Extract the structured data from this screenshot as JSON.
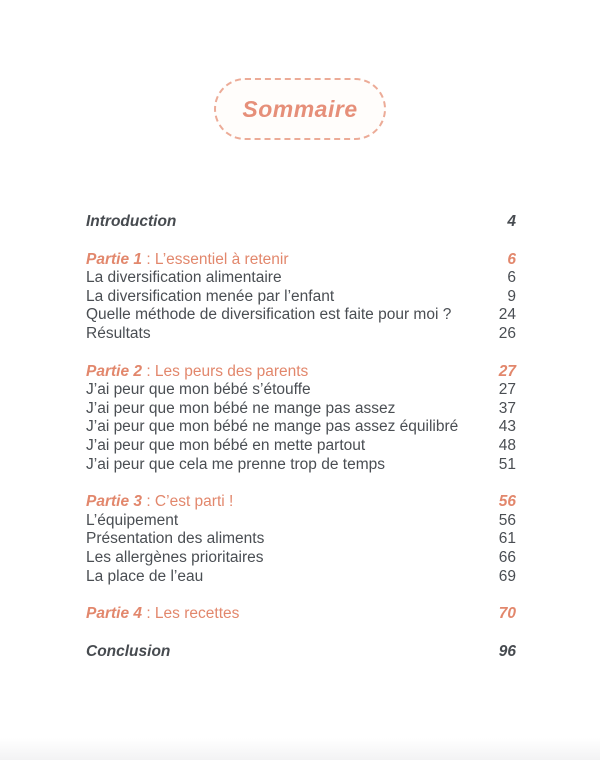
{
  "colors": {
    "accent": "#e2876c",
    "accent_border": "#ecab97",
    "text": "#4a4e53"
  },
  "header": {
    "title": "Sommaire"
  },
  "toc": {
    "introduction": {
      "label": "Introduction",
      "page": "4"
    },
    "parts": [
      {
        "name": "Partie 1",
        "title": " : L’essentiel à retenir",
        "page": "6",
        "items": [
          {
            "label": "La diversification alimentaire",
            "page": "6"
          },
          {
            "label": "La diversification menée par l’enfant",
            "page": "9"
          },
          {
            "label": "Quelle méthode de diversification est faite pour moi ?",
            "page": "24"
          },
          {
            "label": "Résultats",
            "page": "26"
          }
        ]
      },
      {
        "name": "Partie 2",
        "title": " : Les peurs des parents",
        "page": "27",
        "items": [
          {
            "label": "J’ai peur que mon bébé s’étouffe",
            "page": "27"
          },
          {
            "label": "J’ai peur que mon bébé ne mange pas assez",
            "page": "37"
          },
          {
            "label": "J’ai peur que mon bébé ne mange pas assez équilibré",
            "page": "43"
          },
          {
            "label": "J’ai peur que mon bébé en mette partout",
            "page": "48"
          },
          {
            "label": "J’ai peur que cela me prenne trop de temps",
            "page": "51"
          }
        ]
      },
      {
        "name": "Partie 3",
        "title": " : C’est parti !",
        "page": "56",
        "items": [
          {
            "label": "L’équipement",
            "page": "56"
          },
          {
            "label": "Présentation des aliments",
            "page": "61"
          },
          {
            "label": "Les allergènes prioritaires",
            "page": "66"
          },
          {
            "label": "La place de l’eau",
            "page": "69"
          }
        ]
      },
      {
        "name": "Partie 4",
        "title": " : Les recettes",
        "page": "70",
        "items": []
      }
    ],
    "conclusion": {
      "label": "Conclusion",
      "page": "96"
    }
  }
}
